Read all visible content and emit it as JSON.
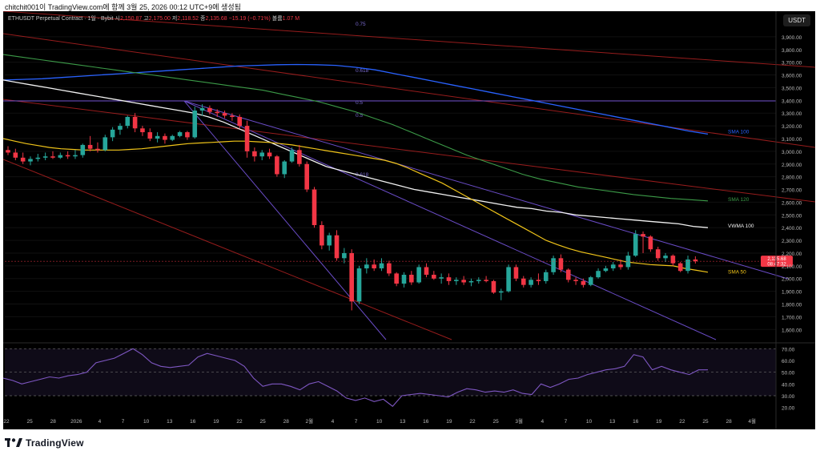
{
  "header": {
    "text": "chitchit001이 TradingView.com에 함께 3월 25, 2026 00:12 UTC+9에 생성됨"
  },
  "symbol": {
    "title": "ETHUSDT Perpetual Contract · 1일 · Bybit",
    "o_label": "시",
    "o": "2,150.87",
    "h_label": "고",
    "h": "2,175.00",
    "l_label": "저",
    "l": "2,118.52",
    "c_label": "종",
    "c": "2,135.68",
    "change": "−15.19 (−0.71%)",
    "vol_label": "볼륨",
    "vol": "1.07 M"
  },
  "currency_badge": "USDT",
  "price_badge": {
    "price": "2,135.68",
    "countdown": "08:47:32"
  },
  "fib_labels": [
    "0.75",
    "0.618",
    "0.5",
    "0.5",
    "0.618"
  ],
  "indicator_labels": {
    "sma100": "SMA 100",
    "sma120": "SMA 120",
    "vwma100": "VWMA 100",
    "sma50": "SMA 50"
  },
  "colors": {
    "up": "#26a69a",
    "down": "#f23645",
    "sma50": "#f0c419",
    "sma100": "#2962ff",
    "sma120": "#3c9b48",
    "vwma100": "#f2f2f2",
    "rsi": "#7e57c2",
    "channel": "#b22222"
  },
  "footer": {
    "brand": "TradingView"
  },
  "chart_data": {
    "type": "candlestick",
    "price_axis": {
      "ticks": [
        "3,900.00",
        "3,800.00",
        "3,700.00",
        "3,600.00",
        "3,500.00",
        "3,400.00",
        "3,300.00",
        "3,200.00",
        "3,100.00",
        "3,000.00",
        "2,900.00",
        "2,800.00",
        "2,700.00",
        "2,600.00",
        "2,500.00",
        "2,400.00",
        "2,300.00",
        "2,200.00",
        "2,100.00",
        "2,000.00",
        "1,900.00",
        "1,800.00",
        "1,700.00",
        "1,600.00"
      ],
      "range": [
        1520,
        4000
      ]
    },
    "time_axis": {
      "ticks": [
        "22",
        "25",
        "28",
        "2026",
        "4",
        "7",
        "10",
        "13",
        "16",
        "19",
        "22",
        "25",
        "28",
        "2월",
        "4",
        "7",
        "10",
        "13",
        "16",
        "19",
        "22",
        "25",
        "3월",
        "4",
        "7",
        "10",
        "13",
        "16",
        "19",
        "22",
        "25",
        "28",
        "4월"
      ]
    },
    "candles": [
      [
        3010,
        3040,
        2970,
        2990
      ],
      [
        2990,
        3020,
        2930,
        2950
      ],
      [
        2950,
        2990,
        2900,
        2920
      ],
      [
        2920,
        2960,
        2890,
        2940
      ],
      [
        2940,
        2980,
        2920,
        2950
      ],
      [
        2950,
        2990,
        2930,
        2960
      ],
      [
        2960,
        3000,
        2940,
        2950
      ],
      [
        2950,
        2990,
        2940,
        2970
      ],
      [
        2970,
        3000,
        2940,
        2960
      ],
      [
        2960,
        3010,
        2940,
        2970
      ],
      [
        2970,
        3060,
        2950,
        3050
      ],
      [
        3050,
        3120,
        3000,
        3020
      ],
      [
        3020,
        3070,
        2990,
        3010
      ],
      [
        3010,
        3130,
        3000,
        3110
      ],
      [
        3110,
        3190,
        3080,
        3170
      ],
      [
        3170,
        3220,
        3130,
        3200
      ],
      [
        3200,
        3280,
        3180,
        3270
      ],
      [
        3270,
        3300,
        3150,
        3180
      ],
      [
        3180,
        3200,
        3120,
        3150
      ],
      [
        3150,
        3180,
        3080,
        3100
      ],
      [
        3100,
        3150,
        3070,
        3120
      ],
      [
        3120,
        3140,
        3060,
        3090
      ],
      [
        3090,
        3130,
        3080,
        3120
      ],
      [
        3120,
        3160,
        3110,
        3150
      ],
      [
        3150,
        3160,
        3090,
        3110
      ],
      [
        3110,
        3350,
        3100,
        3320
      ],
      [
        3320,
        3370,
        3280,
        3340
      ],
      [
        3340,
        3360,
        3290,
        3310
      ],
      [
        3310,
        3330,
        3270,
        3300
      ],
      [
        3300,
        3320,
        3260,
        3280
      ],
      [
        3280,
        3300,
        3240,
        3270
      ],
      [
        3270,
        3290,
        3180,
        3200
      ],
      [
        3200,
        3240,
        2950,
        3000
      ],
      [
        3000,
        3030,
        2920,
        2960
      ],
      [
        2960,
        3010,
        2930,
        2990
      ],
      [
        2990,
        3020,
        2940,
        2960
      ],
      [
        2960,
        2970,
        2800,
        2820
      ],
      [
        2820,
        2930,
        2790,
        2920
      ],
      [
        2920,
        3030,
        2910,
        3010
      ],
      [
        3010,
        3050,
        2880,
        2900
      ],
      [
        2900,
        2920,
        2680,
        2700
      ],
      [
        2700,
        2720,
        2400,
        2420
      ],
      [
        2420,
        2450,
        2230,
        2260
      ],
      [
        2260,
        2360,
        2220,
        2340
      ],
      [
        2340,
        2380,
        2140,
        2160
      ],
      [
        2160,
        2240,
        2120,
        2200
      ],
      [
        2200,
        2230,
        1750,
        1820
      ],
      [
        1820,
        2100,
        1800,
        2080
      ],
      [
        2080,
        2160,
        2040,
        2110
      ],
      [
        2110,
        2150,
        2060,
        2080
      ],
      [
        2080,
        2160,
        2060,
        2120
      ],
      [
        2120,
        2140,
        2020,
        2040
      ],
      [
        2040,
        2050,
        1940,
        1960
      ],
      [
        1960,
        2050,
        1930,
        2030
      ],
      [
        2030,
        2060,
        1950,
        1970
      ],
      [
        1970,
        2110,
        1960,
        2090
      ],
      [
        2090,
        2120,
        2010,
        2030
      ],
      [
        2030,
        2060,
        1990,
        2000
      ],
      [
        2000,
        2040,
        1960,
        2010
      ],
      [
        2010,
        2040,
        1950,
        1980
      ],
      [
        1980,
        2010,
        1950,
        1990
      ],
      [
        1990,
        2020,
        1950,
        1970
      ],
      [
        1970,
        2000,
        1940,
        1980
      ],
      [
        1980,
        2010,
        1960,
        1990
      ],
      [
        1990,
        2020,
        1970,
        1980
      ],
      [
        1980,
        1990,
        1880,
        1890
      ],
      [
        1890,
        1920,
        1830,
        1900
      ],
      [
        1900,
        2110,
        1890,
        2090
      ],
      [
        2090,
        2110,
        1980,
        2000
      ],
      [
        2000,
        2020,
        1930,
        1950
      ],
      [
        1950,
        2010,
        1930,
        1990
      ],
      [
        1990,
        2040,
        1950,
        1980
      ],
      [
        1980,
        2070,
        1960,
        2050
      ],
      [
        2050,
        2180,
        2030,
        2160
      ],
      [
        2160,
        2190,
        2050,
        2070
      ],
      [
        2070,
        2080,
        1970,
        1990
      ],
      [
        1990,
        2010,
        1950,
        1980
      ],
      [
        1980,
        2000,
        1930,
        1950
      ],
      [
        1950,
        2020,
        1940,
        2010
      ],
      [
        2010,
        2080,
        2000,
        2060
      ],
      [
        2060,
        2100,
        2050,
        2080
      ],
      [
        2080,
        2130,
        2060,
        2110
      ],
      [
        2110,
        2150,
        2070,
        2090
      ],
      [
        2090,
        2210,
        2070,
        2180
      ],
      [
        2180,
        2380,
        2170,
        2350
      ],
      [
        2350,
        2370,
        2200,
        2330
      ],
      [
        2330,
        2340,
        2210,
        2230
      ],
      [
        2230,
        2250,
        2140,
        2160
      ],
      [
        2160,
        2200,
        2130,
        2180
      ],
      [
        2180,
        2190,
        2100,
        2120
      ],
      [
        2120,
        2130,
        2050,
        2060
      ],
      [
        2060,
        2180,
        2040,
        2150
      ],
      [
        2150,
        2175,
        2118,
        2136
      ]
    ],
    "sma50": [
      3100,
      3080,
      3060,
      3045,
      3030,
      3020,
      3015,
      3010,
      3010,
      3010,
      3010,
      3015,
      3020,
      3030,
      3040,
      3050,
      3060,
      3065,
      3070,
      3075,
      3080,
      3080,
      3075,
      3070,
      3060,
      3050,
      3035,
      3020,
      3005,
      2990,
      2975,
      2960,
      2945,
      2930,
      2905,
      2870,
      2830,
      2790,
      2750,
      2700,
      2650,
      2600,
      2550,
      2500,
      2450,
      2400,
      2350,
      2300,
      2265,
      2235,
      2210,
      2190,
      2170,
      2150,
      2130,
      2120,
      2110,
      2105,
      2100,
      2080,
      2065,
      2050
    ],
    "vwma100": [
      3560,
      3540,
      3520,
      3500,
      3480,
      3460,
      3440,
      3420,
      3400,
      3380,
      3360,
      3340,
      3320,
      3300,
      3270,
      3230,
      3180,
      3130,
      3080,
      3030,
      2980,
      2930,
      2880,
      2850,
      2820,
      2790,
      2760,
      2730,
      2700,
      2680,
      2660,
      2640,
      2620,
      2600,
      2580,
      2560,
      2550,
      2530,
      2520,
      2500,
      2490,
      2480,
      2470,
      2460,
      2450,
      2440,
      2430,
      2410,
      2400
    ],
    "sma120": [
      3760,
      3740,
      3720,
      3700,
      3680,
      3660,
      3640,
      3620,
      3600,
      3580,
      3560,
      3540,
      3520,
      3500,
      3480,
      3450,
      3420,
      3390,
      3350,
      3310,
      3260,
      3210,
      3150,
      3090,
      3030,
      2970,
      2920,
      2870,
      2820,
      2780,
      2750,
      2720,
      2700,
      2680,
      2660,
      2645,
      2630,
      2620,
      2610
    ],
    "sma100": [
      3560,
      3565,
      3570,
      3580,
      3590,
      3600,
      3610,
      3620,
      3630,
      3640,
      3650,
      3660,
      3670,
      3675,
      3680,
      3682,
      3680,
      3675,
      3660,
      3640,
      3610,
      3580,
      3550,
      3520,
      3490,
      3460,
      3430,
      3400,
      3370,
      3340,
      3310,
      3280,
      3250,
      3220,
      3190,
      3160,
      3135
    ],
    "rsi": {
      "ticks": [
        "70.00",
        "60.00",
        "50.00",
        "40.00",
        "30.00",
        "20.00"
      ],
      "range": [
        15,
        75
      ],
      "values": [
        45,
        43,
        40,
        42,
        44,
        46,
        45,
        47,
        48,
        50,
        58,
        60,
        62,
        66,
        70,
        65,
        58,
        55,
        54,
        55,
        56,
        63,
        66,
        64,
        62,
        60,
        55,
        45,
        38,
        40,
        40,
        38,
        35,
        40,
        42,
        38,
        34,
        28,
        26,
        28,
        25,
        27,
        21,
        30,
        31,
        32,
        31,
        30,
        29,
        33,
        36,
        35,
        33,
        34,
        33,
        35,
        32,
        31,
        40,
        37,
        40,
        44,
        45,
        48,
        50,
        52,
        53,
        55,
        65,
        63,
        52,
        55,
        52,
        50,
        48,
        52,
        52
      ]
    }
  }
}
